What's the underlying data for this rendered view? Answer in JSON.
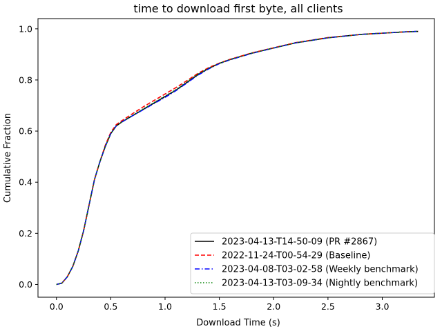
{
  "chart_data": {
    "type": "line",
    "title": "time to download first byte, all clients",
    "xlabel": "Download Time (s)",
    "ylabel": "Cumulative Fraction",
    "xlim": [
      -0.17,
      3.48
    ],
    "ylim": [
      -0.05,
      1.04
    ],
    "xticks": [
      0.0,
      0.5,
      1.0,
      1.5,
      2.0,
      2.5,
      3.0
    ],
    "xtick_labels": [
      "0.0",
      "0.5",
      "1.0",
      "1.5",
      "2.0",
      "2.5",
      "3.0"
    ],
    "yticks": [
      0.0,
      0.2,
      0.4,
      0.6,
      0.8,
      1.0
    ],
    "ytick_labels": [
      "0.0",
      "0.2",
      "0.4",
      "0.6",
      "0.8",
      "1.0"
    ],
    "grid": false,
    "legend_position": "lower-right",
    "series": [
      {
        "name": "2023-04-13-T14-50-09 (PR #2867)",
        "color": "#000000",
        "style": "solid",
        "x": [
          0.0,
          0.05,
          0.1,
          0.15,
          0.2,
          0.25,
          0.3,
          0.35,
          0.4,
          0.45,
          0.5,
          0.55,
          0.6,
          0.7,
          0.8,
          0.9,
          1.0,
          1.1,
          1.2,
          1.3,
          1.4,
          1.5,
          1.6,
          1.8,
          2.0,
          2.2,
          2.5,
          2.8,
          3.0,
          3.2,
          3.33
        ],
        "y": [
          0.0,
          0.005,
          0.03,
          0.07,
          0.13,
          0.21,
          0.31,
          0.41,
          0.48,
          0.54,
          0.59,
          0.62,
          0.635,
          0.66,
          0.685,
          0.71,
          0.735,
          0.76,
          0.79,
          0.82,
          0.845,
          0.865,
          0.88,
          0.905,
          0.925,
          0.945,
          0.965,
          0.978,
          0.983,
          0.988,
          0.99
        ]
      },
      {
        "name": "2022-11-24-T00-54-29 (Baseline)",
        "color": "#ff0000",
        "style": "dashed",
        "x": [
          0.0,
          0.05,
          0.1,
          0.15,
          0.2,
          0.25,
          0.3,
          0.35,
          0.4,
          0.45,
          0.5,
          0.55,
          0.6,
          0.7,
          0.8,
          0.9,
          1.0,
          1.1,
          1.2,
          1.3,
          1.4,
          1.5,
          1.6,
          1.8,
          2.0,
          2.2,
          2.5,
          2.8,
          3.0,
          3.2,
          3.33
        ],
        "y": [
          0.0,
          0.005,
          0.03,
          0.07,
          0.13,
          0.21,
          0.31,
          0.41,
          0.48,
          0.545,
          0.595,
          0.625,
          0.64,
          0.668,
          0.695,
          0.72,
          0.745,
          0.77,
          0.797,
          0.825,
          0.848,
          0.866,
          0.881,
          0.906,
          0.926,
          0.946,
          0.966,
          0.978,
          0.983,
          0.988,
          0.99
        ]
      },
      {
        "name": "2023-04-08-T03-02-58 (Weekly benchmark)",
        "color": "#0000ff",
        "style": "dashdot",
        "x": [
          0.0,
          0.05,
          0.1,
          0.15,
          0.2,
          0.25,
          0.3,
          0.35,
          0.4,
          0.45,
          0.5,
          0.55,
          0.6,
          0.7,
          0.8,
          0.9,
          1.0,
          1.1,
          1.2,
          1.3,
          1.4,
          1.5,
          1.6,
          1.8,
          2.0,
          2.2,
          2.5,
          2.8,
          3.0,
          3.2,
          3.33
        ],
        "y": [
          0.0,
          0.005,
          0.03,
          0.07,
          0.13,
          0.21,
          0.31,
          0.41,
          0.48,
          0.54,
          0.59,
          0.62,
          0.635,
          0.66,
          0.684,
          0.708,
          0.732,
          0.758,
          0.788,
          0.818,
          0.843,
          0.864,
          0.879,
          0.904,
          0.925,
          0.945,
          0.965,
          0.978,
          0.983,
          0.988,
          0.99
        ]
      },
      {
        "name": "2023-04-13-T03-09-34 (Nightly benchmark)",
        "color": "#008000",
        "style": "dotted",
        "x": [
          0.0,
          0.05,
          0.1,
          0.15,
          0.2,
          0.25,
          0.3,
          0.35,
          0.4,
          0.45,
          0.5,
          0.55,
          0.6,
          0.7,
          0.8,
          0.9,
          1.0,
          1.1,
          1.2,
          1.3,
          1.4,
          1.5,
          1.6,
          1.8,
          2.0,
          2.2,
          2.5,
          2.8,
          3.0,
          3.2,
          3.33
        ],
        "y": [
          0.0,
          0.005,
          0.03,
          0.07,
          0.13,
          0.21,
          0.31,
          0.41,
          0.48,
          0.54,
          0.59,
          0.62,
          0.635,
          0.662,
          0.687,
          0.712,
          0.737,
          0.762,
          0.792,
          0.822,
          0.846,
          0.865,
          0.88,
          0.905,
          0.925,
          0.945,
          0.965,
          0.978,
          0.983,
          0.988,
          0.99
        ]
      }
    ]
  }
}
